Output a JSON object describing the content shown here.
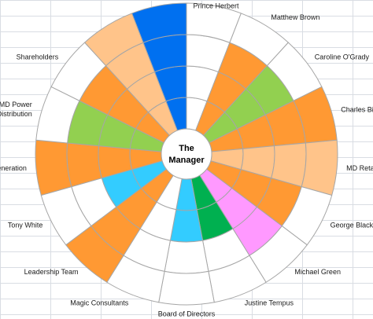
{
  "center": {
    "line1": "The",
    "line2": "Manager"
  },
  "rings": 4,
  "colors": {
    "orange": "#FF9933",
    "light_orange": "#FFC48A",
    "green": "#92D050",
    "blue": "#0070F0",
    "cyan": "#33CCFF",
    "dark_green": "#00B050",
    "pink": "#FF99FF",
    "white": "#FFFFFF",
    "stroke": "#A6A6A6"
  },
  "stakeholders": [
    {
      "name": "Prince Herbert",
      "level": 0,
      "color": "white"
    },
    {
      "name": "Matthew Brown",
      "level": 3,
      "color": "orange"
    },
    {
      "name": "Caroline O'Grady",
      "level": 3,
      "color": "green"
    },
    {
      "name": "Charles Bilingsworth",
      "level": 4,
      "color": "orange"
    },
    {
      "name": "MD Retail",
      "level": 4,
      "color": "light_orange"
    },
    {
      "name": "George Black",
      "level": 3,
      "color": "orange"
    },
    {
      "name": "Michael Green",
      "level": 3,
      "color": "pink"
    },
    {
      "name": "Justine Tempus",
      "level": 2,
      "color": "dark_green"
    },
    {
      "name": "Board of Directors",
      "level": 2,
      "color": "cyan"
    },
    {
      "name": "Magic Consultants",
      "level": 0,
      "color": "white"
    },
    {
      "name": "Leadership Team",
      "level": 4,
      "color": "orange"
    },
    {
      "name": "Tony White",
      "level": 2,
      "color": "cyan"
    },
    {
      "name": "MD Power Generation",
      "level": 4,
      "color": "orange"
    },
    {
      "name": "MD Power Distribution",
      "level": 3,
      "color": "green"
    },
    {
      "name": "Shareholders",
      "level": 3,
      "color": "orange"
    },
    {
      "name": "",
      "level": 4,
      "color": "light_orange"
    },
    {
      "name": "",
      "level": 4,
      "color": "blue"
    }
  ]
}
